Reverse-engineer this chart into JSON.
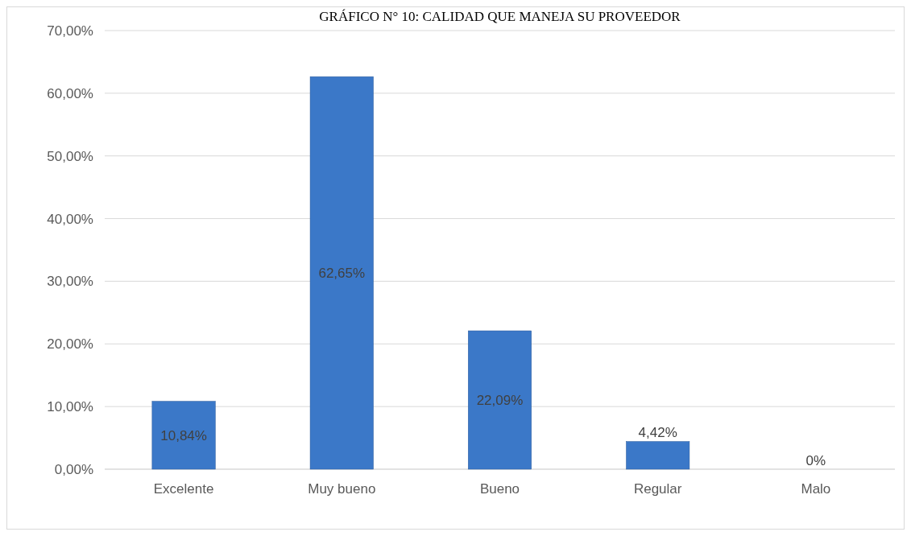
{
  "chart_data": {
    "type": "bar",
    "title": "GRÁFICO N° 10: CALIDAD QUE MANEJA SU PROVEEDOR",
    "categories": [
      "Excelente",
      "Muy bueno",
      "Bueno",
      "Regular",
      "Malo"
    ],
    "values": [
      10.84,
      62.65,
      22.09,
      4.42,
      0
    ],
    "value_labels": [
      "10,84%",
      "62,65%",
      "22,09%",
      "4,42%",
      "0%"
    ],
    "color": "#3b78c8",
    "ylim": [
      0,
      70
    ],
    "yticks": [
      {
        "value": 0,
        "label": "0,00%"
      },
      {
        "value": 10,
        "label": "10,00%"
      },
      {
        "value": 20,
        "label": "20,00%"
      },
      {
        "value": 30,
        "label": "30,00%"
      },
      {
        "value": 40,
        "label": "40,00%"
      },
      {
        "value": 50,
        "label": "50,00%"
      },
      {
        "value": 60,
        "label": "60,00%"
      },
      {
        "value": 70,
        "label": "70,00%"
      }
    ],
    "grid": "y"
  }
}
